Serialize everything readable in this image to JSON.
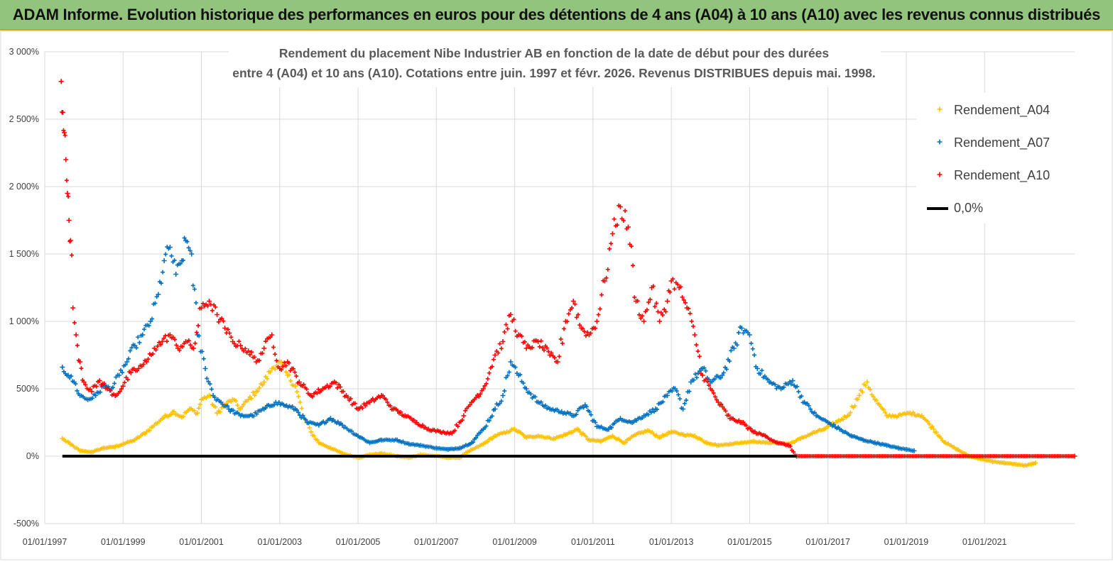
{
  "banner": {
    "title": "ADAM Informe. Evolution historique des performances en euros pour des détentions de 4 ans (A04) à 10 ans (A10) avec les revenus connus distribués"
  },
  "colors": {
    "banner_bg": "#93c47d",
    "a04": "#ffc000",
    "a07": "#0070c0",
    "a10": "#ff0000",
    "zero": "#000000",
    "grid": "#d9d9d9"
  },
  "chart_data": {
    "type": "scatter",
    "title_line1": "Rendement du placement Nibe Industrier AB en fonction de la date de début pour des durées",
    "title_line2": "entre 4 (A04) et 10 ans (A10). Cotations entre juin. 1997 et févr. 2026. Revenus DISTRIBUES depuis mai. 1998.",
    "xlabel": "",
    "ylabel": "",
    "x_range": [
      1997.0,
      2023.3
    ],
    "ylim": [
      -500,
      3000
    ],
    "y_ticks": [
      -500,
      0,
      500,
      1000,
      1500,
      2000,
      2500,
      3000
    ],
    "y_tick_labels": [
      "-500%",
      "0%",
      "500%",
      "1 000%",
      "1 500%",
      "2 000%",
      "2 500%",
      "3 000%"
    ],
    "x_ticks": [
      1997,
      1999,
      2001,
      2003,
      2005,
      2007,
      2009,
      2011,
      2013,
      2015,
      2017,
      2019,
      2021
    ],
    "x_tick_labels": [
      "01/01/1997",
      "01/01/1999",
      "01/01/2001",
      "01/01/2003",
      "01/01/2005",
      "01/01/2007",
      "01/01/2009",
      "01/01/2011",
      "01/01/2013",
      "01/01/2015",
      "01/01/2017",
      "01/01/2019",
      "01/01/2021"
    ],
    "legend": {
      "position": "top-right",
      "items": [
        {
          "name": "Rendement_A04",
          "marker": "plus",
          "color": "#ffc000"
        },
        {
          "name": "Rendement_A07",
          "marker": "plus",
          "color": "#0070c0"
        },
        {
          "name": "Rendement_A10",
          "marker": "plus",
          "color": "#ff0000"
        },
        {
          "name": "0,0%",
          "marker": "line",
          "color": "#000000"
        }
      ]
    },
    "series": [
      {
        "name": "Rendement_A04",
        "color": "#ffc000",
        "points": [
          [
            1997.45,
            130
          ],
          [
            1997.65,
            90
          ],
          [
            1997.9,
            40
          ],
          [
            1998.2,
            30
          ],
          [
            1998.5,
            60
          ],
          [
            1998.8,
            70
          ],
          [
            1999.0,
            90
          ],
          [
            1999.3,
            120
          ],
          [
            1999.6,
            180
          ],
          [
            1999.8,
            230
          ],
          [
            2000.0,
            280
          ],
          [
            2000.3,
            330
          ],
          [
            2000.5,
            290
          ],
          [
            2000.7,
            350
          ],
          [
            2000.9,
            320
          ],
          [
            2001.0,
            420
          ],
          [
            2001.2,
            450
          ],
          [
            2001.4,
            320
          ],
          [
            2001.6,
            380
          ],
          [
            2001.8,
            420
          ],
          [
            2002.0,
            350
          ],
          [
            2002.2,
            420
          ],
          [
            2002.4,
            480
          ],
          [
            2002.6,
            550
          ],
          [
            2002.8,
            650
          ],
          [
            2003.0,
            700
          ],
          [
            2003.2,
            600
          ],
          [
            2003.4,
            520
          ],
          [
            2003.6,
            300
          ],
          [
            2003.8,
            180
          ],
          [
            2004.0,
            100
          ],
          [
            2004.3,
            60
          ],
          [
            2004.6,
            20
          ],
          [
            2005.0,
            -10
          ],
          [
            2005.3,
            10
          ],
          [
            2005.6,
            20
          ],
          [
            2006.0,
            0
          ],
          [
            2006.3,
            -10
          ],
          [
            2006.6,
            10
          ],
          [
            2007.0,
            0
          ],
          [
            2007.3,
            -10
          ],
          [
            2007.6,
            -10
          ],
          [
            2007.8,
            30
          ],
          [
            2008.2,
            90
          ],
          [
            2008.5,
            150
          ],
          [
            2008.8,
            180
          ],
          [
            2009.0,
            200
          ],
          [
            2009.3,
            140
          ],
          [
            2009.6,
            150
          ],
          [
            2010.0,
            130
          ],
          [
            2010.3,
            160
          ],
          [
            2010.6,
            200
          ],
          [
            2010.9,
            120
          ],
          [
            2011.2,
            110
          ],
          [
            2011.5,
            150
          ],
          [
            2011.8,
            100
          ],
          [
            2012.1,
            160
          ],
          [
            2012.4,
            190
          ],
          [
            2012.7,
            140
          ],
          [
            2013.0,
            180
          ],
          [
            2013.3,
            160
          ],
          [
            2013.6,
            150
          ],
          [
            2013.9,
            100
          ],
          [
            2014.2,
            80
          ],
          [
            2014.5,
            90
          ],
          [
            2014.8,
            100
          ],
          [
            2015.1,
            110
          ],
          [
            2015.4,
            100
          ],
          [
            2015.7,
            100
          ],
          [
            2016.0,
            90
          ],
          [
            2016.3,
            130
          ],
          [
            2016.6,
            170
          ],
          [
            2016.9,
            200
          ],
          [
            2017.2,
            250
          ],
          [
            2017.5,
            300
          ],
          [
            2017.8,
            450
          ],
          [
            2018.0,
            550
          ],
          [
            2018.2,
            420
          ],
          [
            2018.5,
            300
          ],
          [
            2018.8,
            300
          ],
          [
            2019.1,
            320
          ],
          [
            2019.4,
            300
          ],
          [
            2019.7,
            200
          ],
          [
            2020.0,
            100
          ],
          [
            2020.3,
            50
          ],
          [
            2020.6,
            0
          ],
          [
            2020.9,
            -20
          ],
          [
            2021.2,
            -40
          ],
          [
            2021.5,
            -50
          ],
          [
            2021.8,
            -60
          ],
          [
            2022.0,
            -70
          ],
          [
            2022.2,
            -60
          ],
          [
            2022.3,
            -50
          ]
        ]
      },
      {
        "name": "Rendement_A07",
        "color": "#0070c0",
        "points": [
          [
            1997.45,
            660
          ],
          [
            1997.6,
            600
          ],
          [
            1997.75,
            550
          ],
          [
            1997.9,
            450
          ],
          [
            1998.1,
            420
          ],
          [
            1998.3,
            450
          ],
          [
            1998.5,
            520
          ],
          [
            1998.7,
            500
          ],
          [
            1998.9,
            600
          ],
          [
            1999.1,
            700
          ],
          [
            1999.3,
            820
          ],
          [
            1999.5,
            900
          ],
          [
            1999.7,
            1000
          ],
          [
            1999.9,
            1200
          ],
          [
            2000.05,
            1450
          ],
          [
            2000.2,
            1550
          ],
          [
            2000.35,
            1350
          ],
          [
            2000.5,
            1450
          ],
          [
            2000.6,
            1600
          ],
          [
            2000.75,
            1500
          ],
          [
            2000.9,
            900
          ],
          [
            2001.1,
            650
          ],
          [
            2001.3,
            450
          ],
          [
            2001.5,
            400
          ],
          [
            2001.7,
            350
          ],
          [
            2002.0,
            300
          ],
          [
            2002.3,
            300
          ],
          [
            2002.6,
            350
          ],
          [
            2002.9,
            400
          ],
          [
            2003.1,
            380
          ],
          [
            2003.4,
            350
          ],
          [
            2003.7,
            250
          ],
          [
            2004.0,
            230
          ],
          [
            2004.3,
            280
          ],
          [
            2004.6,
            230
          ],
          [
            2005.0,
            150
          ],
          [
            2005.3,
            100
          ],
          [
            2005.6,
            120
          ],
          [
            2006.0,
            120
          ],
          [
            2006.3,
            90
          ],
          [
            2006.6,
            80
          ],
          [
            2007.0,
            60
          ],
          [
            2007.3,
            50
          ],
          [
            2007.6,
            60
          ],
          [
            2007.9,
            100
          ],
          [
            2008.2,
            200
          ],
          [
            2008.5,
            350
          ],
          [
            2008.7,
            450
          ],
          [
            2008.9,
            700
          ],
          [
            2009.1,
            600
          ],
          [
            2009.3,
            500
          ],
          [
            2009.6,
            400
          ],
          [
            2009.9,
            350
          ],
          [
            2010.2,
            330
          ],
          [
            2010.5,
            300
          ],
          [
            2010.8,
            380
          ],
          [
            2011.1,
            220
          ],
          [
            2011.4,
            200
          ],
          [
            2011.7,
            280
          ],
          [
            2012.0,
            250
          ],
          [
            2012.3,
            300
          ],
          [
            2012.6,
            350
          ],
          [
            2012.9,
            450
          ],
          [
            2013.1,
            500
          ],
          [
            2013.3,
            350
          ],
          [
            2013.5,
            550
          ],
          [
            2013.8,
            650
          ],
          [
            2014.0,
            550
          ],
          [
            2014.3,
            600
          ],
          [
            2014.6,
            800
          ],
          [
            2014.8,
            950
          ],
          [
            2015.0,
            900
          ],
          [
            2015.2,
            650
          ],
          [
            2015.5,
            550
          ],
          [
            2015.8,
            500
          ],
          [
            2016.1,
            560
          ],
          [
            2016.4,
            400
          ],
          [
            2016.7,
            300
          ],
          [
            2017.0,
            250
          ],
          [
            2017.3,
            200
          ],
          [
            2017.6,
            150
          ],
          [
            2017.9,
            120
          ],
          [
            2018.2,
            100
          ],
          [
            2018.5,
            80
          ],
          [
            2018.8,
            60
          ],
          [
            2019.0,
            50
          ],
          [
            2019.2,
            40
          ]
        ]
      },
      {
        "name": "Rendement_A10",
        "color": "#ff0000",
        "points": [
          [
            1997.42,
            2780
          ],
          [
            1997.46,
            2550
          ],
          [
            1997.5,
            2400
          ],
          [
            1997.54,
            2200
          ],
          [
            1997.58,
            1950
          ],
          [
            1997.62,
            1750
          ],
          [
            1997.66,
            1600
          ],
          [
            1997.72,
            1100
          ],
          [
            1997.8,
            900
          ],
          [
            1997.9,
            700
          ],
          [
            1998.0,
            550
          ],
          [
            1998.2,
            480
          ],
          [
            1998.4,
            560
          ],
          [
            1998.6,
            500
          ],
          [
            1998.8,
            450
          ],
          [
            1999.0,
            520
          ],
          [
            1999.2,
            620
          ],
          [
            1999.4,
            650
          ],
          [
            1999.6,
            700
          ],
          [
            1999.8,
            800
          ],
          [
            2000.0,
            850
          ],
          [
            2000.2,
            900
          ],
          [
            2000.4,
            800
          ],
          [
            2000.6,
            850
          ],
          [
            2000.8,
            800
          ],
          [
            2001.0,
            1100
          ],
          [
            2001.2,
            1150
          ],
          [
            2001.4,
            1050
          ],
          [
            2001.6,
            950
          ],
          [
            2001.8,
            850
          ],
          [
            2002.0,
            820
          ],
          [
            2002.2,
            780
          ],
          [
            2002.4,
            700
          ],
          [
            2002.6,
            800
          ],
          [
            2002.8,
            900
          ],
          [
            2003.0,
            650
          ],
          [
            2003.2,
            700
          ],
          [
            2003.5,
            550
          ],
          [
            2003.8,
            450
          ],
          [
            2004.1,
            500
          ],
          [
            2004.4,
            550
          ],
          [
            2004.7,
            450
          ],
          [
            2005.0,
            350
          ],
          [
            2005.3,
            400
          ],
          [
            2005.6,
            450
          ],
          [
            2005.9,
            350
          ],
          [
            2006.2,
            300
          ],
          [
            2006.5,
            250
          ],
          [
            2006.8,
            200
          ],
          [
            2007.1,
            180
          ],
          [
            2007.4,
            170
          ],
          [
            2007.7,
            300
          ],
          [
            2007.9,
            400
          ],
          [
            2008.2,
            500
          ],
          [
            2008.5,
            750
          ],
          [
            2008.7,
            850
          ],
          [
            2008.9,
            1050
          ],
          [
            2009.1,
            900
          ],
          [
            2009.3,
            800
          ],
          [
            2009.6,
            850
          ],
          [
            2009.9,
            750
          ],
          [
            2010.1,
            700
          ],
          [
            2010.3,
            1000
          ],
          [
            2010.5,
            1150
          ],
          [
            2010.7,
            950
          ],
          [
            2010.9,
            900
          ],
          [
            2011.1,
            1000
          ],
          [
            2011.3,
            1300
          ],
          [
            2011.5,
            1650
          ],
          [
            2011.7,
            1850
          ],
          [
            2011.9,
            1700
          ],
          [
            2012.1,
            1150
          ],
          [
            2012.3,
            1000
          ],
          [
            2012.5,
            1250
          ],
          [
            2012.7,
            1000
          ],
          [
            2012.9,
            1150
          ],
          [
            2013.0,
            1300
          ],
          [
            2013.2,
            1250
          ],
          [
            2013.4,
            1100
          ],
          [
            2013.6,
            900
          ],
          [
            2013.8,
            600
          ],
          [
            2014.0,
            500
          ],
          [
            2014.2,
            400
          ],
          [
            2014.5,
            280
          ],
          [
            2014.8,
            250
          ],
          [
            2015.1,
            180
          ],
          [
            2015.4,
            150
          ],
          [
            2015.7,
            100
          ],
          [
            2016.0,
            80
          ],
          [
            2016.2,
            0
          ],
          [
            2023.3,
            0
          ]
        ]
      }
    ]
  }
}
